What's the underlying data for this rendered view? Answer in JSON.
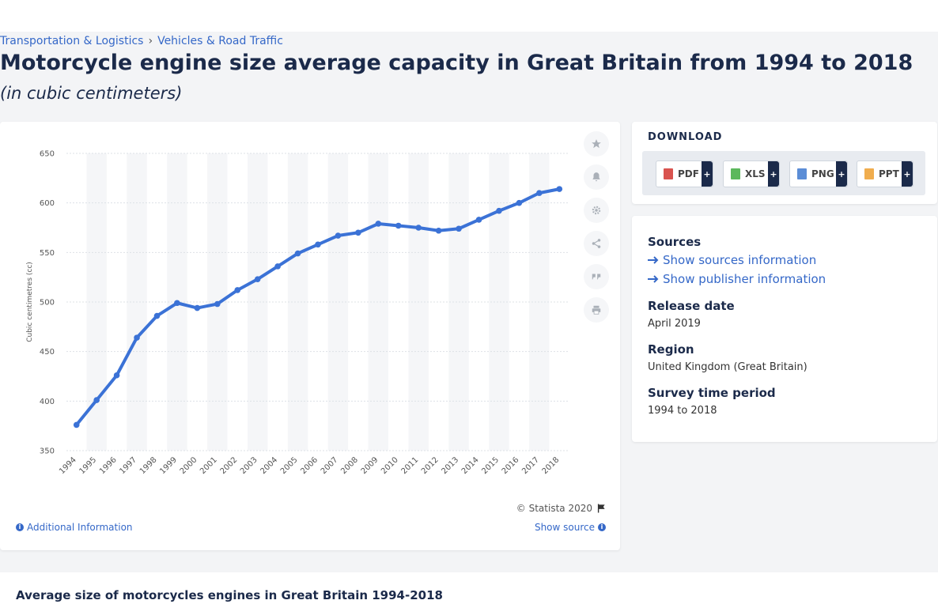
{
  "breadcrumb": [
    "Transportation & Logistics",
    "Vehicles & Road Traffic"
  ],
  "breadcrumb_sep": "›",
  "title": "Motorcycle engine size average capacity in Great Britain from 1994 to 2018",
  "subtitle": "(in cubic centimeters)",
  "chart_data": {
    "type": "line",
    "title": "",
    "xlabel": "",
    "ylabel": "Cubic centimetres (cc)",
    "categories": [
      "1994",
      "1995",
      "1996",
      "1997",
      "1998",
      "1999",
      "2000",
      "2001",
      "2002",
      "2003",
      "2004",
      "2005",
      "2006",
      "2007",
      "2008",
      "2009",
      "2010",
      "2011",
      "2012",
      "2013",
      "2014",
      "2015",
      "2016",
      "2017",
      "2018"
    ],
    "series": [
      {
        "values": [
          376,
          401,
          426,
          464,
          486,
          499,
          494,
          498,
          512,
          523,
          536,
          549,
          558,
          567,
          570,
          579,
          577,
          575,
          572,
          574,
          583,
          592,
          600,
          610,
          614
        ]
      }
    ],
    "ylim": [
      350,
      650
    ],
    "yticks": [
      350,
      400,
      450,
      500,
      550,
      600,
      650
    ],
    "grid": true,
    "legend": "none",
    "line_color": "#3b72d6"
  },
  "tools": [
    "star-icon",
    "bell-icon",
    "gear-icon",
    "share-icon",
    "quote-icon",
    "print-icon"
  ],
  "copyright": "© Statista 2020",
  "additional_info": "Additional Information",
  "show_source": "Show source",
  "download": {
    "title": "DOWNLOAD",
    "buttons": [
      {
        "label": "PDF",
        "color": "#d9534f"
      },
      {
        "label": "XLS",
        "color": "#5cb85c"
      },
      {
        "label": "PNG",
        "color": "#5b8dd6"
      },
      {
        "label": "PPT",
        "color": "#f0ad4e"
      }
    ],
    "plus": "+"
  },
  "info": {
    "sources_label": "Sources",
    "show_sources": "Show sources information",
    "show_publisher": "Show publisher information",
    "release_label": "Release date",
    "release_value": "April 2019",
    "region_label": "Region",
    "region_value": "United Kingdom (Great Britain)",
    "period_label": "Survey time period",
    "period_value": "1994 to 2018"
  },
  "bottom_title": "Average size of motorcycles engines in Great Britain 1994-2018"
}
